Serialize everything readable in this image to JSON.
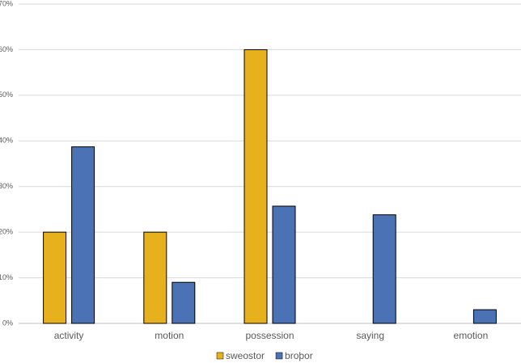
{
  "chart_data": {
    "type": "bar",
    "categories": [
      "activity",
      "motion",
      "possession",
      "saying",
      "emotion"
    ],
    "series": [
      {
        "name": "sweostor",
        "color": "#e6b11c",
        "values": [
          20,
          20,
          60,
          0,
          0
        ]
      },
      {
        "name": "broþor",
        "color": "#4a72b5",
        "values": [
          38.7,
          9,
          25.7,
          23.8,
          3
        ]
      }
    ],
    "ylim": [
      0,
      70
    ],
    "yticks": [
      {
        "value": 0,
        "label": "0%"
      },
      {
        "value": 10,
        "label": "10%"
      },
      {
        "value": 20,
        "label": "20%"
      },
      {
        "value": 30,
        "label": "30%"
      },
      {
        "value": 40,
        "label": "40%"
      },
      {
        "value": 50,
        "label": "50%"
      },
      {
        "value": 60,
        "label": "60%"
      },
      {
        "value": 70,
        "label": "70%"
      }
    ],
    "grid": true,
    "legend": "bottom"
  }
}
